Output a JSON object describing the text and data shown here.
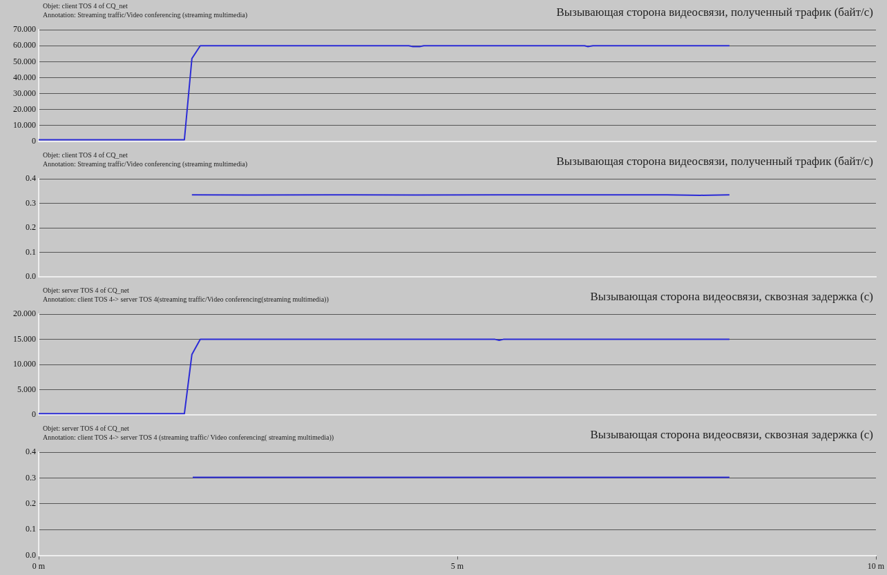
{
  "chart_data": [
    {
      "type": "line",
      "title": "Вызывающая сторона видеосвязи, полученный трафик (байт/с)",
      "annotations": [
        "Objet: client TOS 4 of CQ_net",
        "Annotation: Streaming traffic/Video conferencing (streaming multimedia)"
      ],
      "x": [
        0,
        1.74,
        1.83,
        1.93,
        4.42,
        4.47,
        4.55,
        4.6,
        6.52,
        6.56,
        6.62,
        8.25
      ],
      "values": [
        1,
        1,
        52,
        60,
        60,
        59.5,
        59.5,
        60,
        60,
        59.5,
        60,
        60
      ],
      "color": "#2b2bd6",
      "xlim": [
        0,
        10
      ],
      "ylim": [
        0,
        70
      ],
      "yticks": [
        0,
        {
          "value": 10,
          "label": "10.000"
        },
        {
          "value": 20,
          "label": "20.000"
        },
        {
          "value": 30,
          "label": "30.000"
        },
        {
          "value": 40,
          "label": "40.000"
        },
        {
          "value": 50,
          "label": "50.000"
        },
        {
          "value": 60,
          "label": "60.000"
        },
        {
          "value": 70,
          "label": "70.000"
        }
      ],
      "grid": "y",
      "marker": "none",
      "line_style": "solid",
      "legend": false,
      "tick_labels": "y"
    },
    {
      "type": "line",
      "title": "Вызывающая сторона видеосвязи, полученный трафик (байт/с)",
      "annotations": [
        "Objet: client TOS 4 of CQ_net",
        "Annotation: Streaming traffic/Video conferencing (streaming multimedia)"
      ],
      "x": [
        1.83,
        2.5,
        3.5,
        4.5,
        5.5,
        6.5,
        7.5,
        7.9,
        8.25
      ],
      "values": [
        0.335,
        0.334,
        0.335,
        0.334,
        0.335,
        0.335,
        0.335,
        0.333,
        0.335
      ],
      "color": "#2b2bd6",
      "xlim": [
        0,
        10
      ],
      "ylim": [
        0,
        0.4
      ],
      "yticks": [
        {
          "value": 0,
          "label": "0.0"
        },
        0.1,
        0.2,
        0.3,
        0.4
      ],
      "grid": "y",
      "marker": "none",
      "line_style": "solid",
      "legend": false,
      "tick_labels": "y"
    },
    {
      "type": "line",
      "title": "Вызывающая сторона видеосвязи, сквозная задержка (с)",
      "annotations": [
        "Objet: server TOS 4 of CQ_net",
        "Annotation: client TOS 4-> server TOS 4(streaming traffic/Video conferencing(streaming multimedia))"
      ],
      "x": [
        0,
        1.74,
        1.83,
        1.93,
        5.45,
        5.5,
        5.55,
        8.25
      ],
      "values": [
        0.2,
        0.2,
        12,
        15,
        15,
        14.8,
        15,
        15
      ],
      "color": "#2b2bd6",
      "xlim": [
        0,
        10
      ],
      "ylim": [
        0,
        20
      ],
      "yticks": [
        0,
        {
          "value": 5,
          "label": "5.000"
        },
        {
          "value": 10,
          "label": "10.000"
        },
        {
          "value": 15,
          "label": "15.000"
        },
        {
          "value": 20,
          "label": "20.000"
        }
      ],
      "grid": "y",
      "marker": "none",
      "line_style": "solid",
      "legend": false,
      "tick_labels": "y"
    },
    {
      "type": "line",
      "title": "Вызывающая сторона видеосвязи, сквозная задержка (с)",
      "annotations": [
        "Objet: server TOS 4 of CQ_net",
        "Annotation: client TOS 4-> server TOS 4 (streaming traffic/ Video conferencing( streaming multimedia))"
      ],
      "x": [
        1.84,
        8.25
      ],
      "values": [
        0.303,
        0.303
      ],
      "color": "#2b2bd6",
      "xlim": [
        0,
        10
      ],
      "xticks": [
        {
          "value": 0,
          "label": "0 m"
        },
        {
          "value": 5,
          "label": "5 m"
        },
        {
          "value": 10,
          "label": "10 m"
        }
      ],
      "ylim": [
        0,
        0.4
      ],
      "yticks": [
        {
          "value": 0,
          "label": "0.0"
        },
        0.1,
        0.2,
        0.3,
        0.4
      ],
      "grid": "y",
      "marker": "none",
      "line_style": "solid",
      "legend": false
    }
  ]
}
